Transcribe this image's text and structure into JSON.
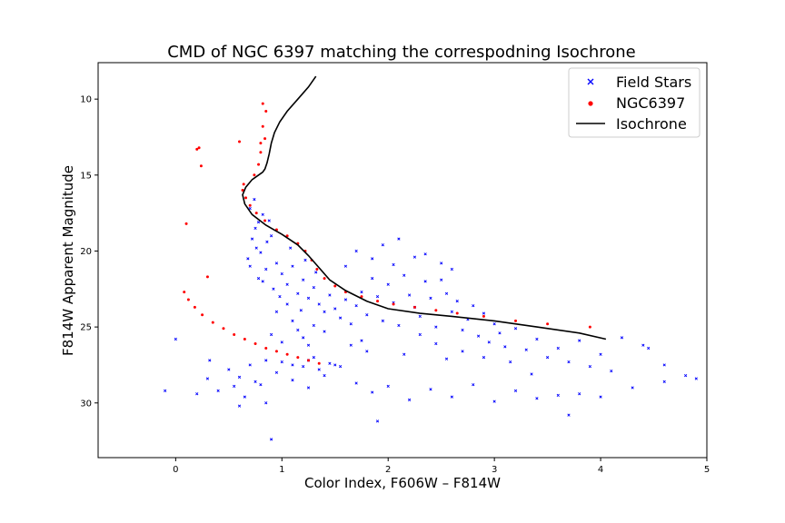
{
  "chart_data": {
    "type": "scatter",
    "title": "CMD of NGC 6397 matching the correspodning Isochrone",
    "xlabel": "Color Index, F606W – F814W",
    "ylabel": "F814W Apparent Magnitude",
    "xlim": [
      -0.73,
      5.0
    ],
    "ylim": [
      33.6,
      7.6
    ],
    "y_inverted": true,
    "xticks": [
      0,
      1,
      2,
      3,
      4,
      5
    ],
    "yticks": [
      10,
      15,
      20,
      25,
      30
    ],
    "grid": false,
    "legend_position": "top-right",
    "series": [
      {
        "name": "Field Stars",
        "marker": "x",
        "color": "#0000ff",
        "points": [
          [
            0.7,
            17.2
          ],
          [
            0.75,
            18.5
          ],
          [
            0.72,
            19.2
          ],
          [
            0.8,
            20.1
          ],
          [
            0.68,
            20.5
          ],
          [
            0.85,
            21.2
          ],
          [
            0.78,
            21.8
          ],
          [
            0.9,
            19.0
          ],
          [
            0.95,
            20.8
          ],
          [
            1.0,
            21.5
          ],
          [
            1.05,
            22.2
          ],
          [
            1.1,
            21.0
          ],
          [
            0.88,
            18.0
          ],
          [
            0.82,
            17.6
          ],
          [
            0.76,
            19.8
          ],
          [
            0.92,
            22.5
          ],
          [
            1.15,
            22.8
          ],
          [
            1.2,
            21.9
          ],
          [
            1.25,
            23.1
          ],
          [
            1.3,
            22.4
          ],
          [
            1.35,
            23.5
          ],
          [
            1.4,
            24.0
          ],
          [
            1.45,
            22.9
          ],
          [
            1.5,
            23.8
          ],
          [
            1.55,
            24.4
          ],
          [
            1.6,
            23.2
          ],
          [
            1.65,
            24.8
          ],
          [
            1.7,
            23.6
          ],
          [
            1.75,
            22.7
          ],
          [
            1.8,
            24.2
          ],
          [
            1.85,
            21.8
          ],
          [
            1.9,
            23.0
          ],
          [
            1.95,
            24.6
          ],
          [
            2.0,
            22.2
          ],
          [
            2.05,
            23.4
          ],
          [
            2.1,
            24.9
          ],
          [
            2.15,
            21.6
          ],
          [
            2.2,
            22.9
          ],
          [
            2.25,
            23.7
          ],
          [
            2.3,
            24.3
          ],
          [
            2.35,
            22.0
          ],
          [
            2.4,
            23.1
          ],
          [
            2.45,
            25.0
          ],
          [
            2.5,
            21.9
          ],
          [
            2.55,
            22.8
          ],
          [
            2.6,
            24.0
          ],
          [
            2.65,
            23.3
          ],
          [
            2.7,
            25.2
          ],
          [
            2.75,
            24.5
          ],
          [
            2.8,
            23.6
          ],
          [
            2.85,
            25.6
          ],
          [
            2.9,
            24.1
          ],
          [
            2.95,
            26.0
          ],
          [
            3.0,
            24.8
          ],
          [
            3.05,
            25.4
          ],
          [
            3.1,
            26.3
          ],
          [
            3.2,
            25.1
          ],
          [
            3.3,
            26.5
          ],
          [
            3.4,
            25.8
          ],
          [
            3.5,
            27.0
          ],
          [
            3.6,
            26.4
          ],
          [
            3.7,
            27.3
          ],
          [
            3.8,
            25.9
          ],
          [
            3.9,
            27.6
          ],
          [
            4.0,
            26.8
          ],
          [
            4.1,
            27.9
          ],
          [
            4.2,
            25.7
          ],
          [
            4.4,
            26.2
          ],
          [
            4.6,
            27.5
          ],
          [
            4.8,
            28.2
          ],
          [
            1.85,
            20.5
          ],
          [
            1.95,
            19.6
          ],
          [
            2.05,
            20.9
          ],
          [
            2.1,
            19.2
          ],
          [
            2.25,
            20.4
          ],
          [
            2.35,
            20.2
          ],
          [
            1.7,
            20.0
          ],
          [
            1.6,
            21.0
          ],
          [
            2.5,
            20.8
          ],
          [
            2.6,
            21.2
          ],
          [
            0.95,
            24.0
          ],
          [
            1.05,
            23.5
          ],
          [
            1.15,
            25.2
          ],
          [
            1.0,
            26.0
          ],
          [
            1.1,
            24.6
          ],
          [
            1.2,
            25.7
          ],
          [
            1.3,
            24.9
          ],
          [
            0.9,
            25.5
          ],
          [
            1.25,
            26.2
          ],
          [
            1.4,
            25.3
          ],
          [
            0.5,
            27.8
          ],
          [
            0.6,
            28.3
          ],
          [
            0.7,
            27.5
          ],
          [
            0.8,
            28.8
          ],
          [
            0.85,
            27.2
          ],
          [
            0.95,
            28.0
          ],
          [
            1.1,
            28.5
          ],
          [
            1.25,
            29.0
          ],
          [
            1.4,
            28.2
          ],
          [
            1.55,
            27.6
          ],
          [
            0.3,
            28.4
          ],
          [
            0.4,
            29.2
          ],
          [
            0.55,
            28.9
          ],
          [
            0.65,
            29.6
          ],
          [
            0.75,
            28.6
          ],
          [
            0.2,
            29.4
          ],
          [
            1.7,
            28.7
          ],
          [
            1.85,
            29.3
          ],
          [
            2.0,
            28.9
          ],
          [
            2.2,
            29.8
          ],
          [
            2.4,
            29.1
          ],
          [
            2.6,
            29.6
          ],
          [
            2.8,
            28.8
          ],
          [
            3.0,
            29.9
          ],
          [
            3.2,
            29.2
          ],
          [
            3.4,
            29.7
          ],
          [
            3.6,
            29.5
          ],
          [
            3.8,
            29.4
          ],
          [
            4.0,
            29.6
          ],
          [
            4.3,
            29.0
          ],
          [
            4.6,
            28.6
          ],
          [
            4.9,
            28.4
          ],
          [
            1.0,
            27.3
          ],
          [
            1.2,
            27.6
          ],
          [
            1.3,
            27.0
          ],
          [
            1.45,
            27.4
          ],
          [
            1.1,
            27.5
          ],
          [
            1.35,
            27.8
          ],
          [
            1.25,
            27.2
          ],
          [
            1.5,
            27.5
          ],
          [
            0.85,
            30.0
          ],
          [
            0.6,
            30.2
          ],
          [
            -0.1,
            29.2
          ],
          [
            0.0,
            25.8
          ],
          [
            0.9,
            32.4
          ],
          [
            0.32,
            27.2
          ],
          [
            1.9,
            31.2
          ],
          [
            3.7,
            30.8
          ],
          [
            4.45,
            26.4
          ],
          [
            2.9,
            27.0
          ],
          [
            1.75,
            25.9
          ],
          [
            1.8,
            26.6
          ],
          [
            1.65,
            26.2
          ],
          [
            2.15,
            26.8
          ],
          [
            2.3,
            25.5
          ],
          [
            2.45,
            26.1
          ],
          [
            2.7,
            26.6
          ],
          [
            2.55,
            27.1
          ],
          [
            3.15,
            27.3
          ],
          [
            3.35,
            28.1
          ],
          [
            0.74,
            16.6
          ],
          [
            0.78,
            18.1
          ],
          [
            0.86,
            19.4
          ],
          [
            0.7,
            21.0
          ],
          [
            0.82,
            22.0
          ],
          [
            0.98,
            23.0
          ],
          [
            1.18,
            23.9
          ],
          [
            1.08,
            19.8
          ],
          [
            1.22,
            20.6
          ],
          [
            1.32,
            21.4
          ]
        ]
      },
      {
        "name": "NGC6397",
        "marker": "o",
        "color": "#ff0000",
        "points": [
          [
            0.85,
            10.8
          ],
          [
            0.82,
            11.8
          ],
          [
            0.84,
            12.6
          ],
          [
            0.8,
            13.5
          ],
          [
            0.78,
            14.3
          ],
          [
            0.74,
            15.0
          ],
          [
            0.64,
            15.6
          ],
          [
            0.63,
            16.0
          ],
          [
            0.66,
            16.5
          ],
          [
            0.7,
            17.0
          ],
          [
            0.76,
            17.5
          ],
          [
            0.84,
            18.0
          ],
          [
            0.95,
            18.6
          ],
          [
            1.05,
            19.0
          ],
          [
            1.15,
            19.5
          ],
          [
            1.22,
            20.0
          ],
          [
            1.28,
            20.6
          ],
          [
            1.33,
            21.2
          ],
          [
            1.4,
            21.8
          ],
          [
            1.5,
            22.3
          ],
          [
            1.6,
            22.7
          ],
          [
            1.75,
            23.0
          ],
          [
            1.9,
            23.3
          ],
          [
            2.05,
            23.5
          ],
          [
            2.25,
            23.7
          ],
          [
            2.45,
            23.9
          ],
          [
            2.65,
            24.1
          ],
          [
            2.9,
            24.3
          ],
          [
            3.2,
            24.6
          ],
          [
            3.5,
            24.8
          ],
          [
            3.9,
            25.0
          ],
          [
            0.08,
            22.7
          ],
          [
            0.12,
            23.2
          ],
          [
            0.18,
            23.7
          ],
          [
            0.25,
            24.2
          ],
          [
            0.35,
            24.7
          ],
          [
            0.45,
            25.1
          ],
          [
            0.55,
            25.5
          ],
          [
            0.65,
            25.8
          ],
          [
            0.75,
            26.1
          ],
          [
            0.85,
            26.4
          ],
          [
            0.95,
            26.6
          ],
          [
            1.05,
            26.8
          ],
          [
            1.15,
            27.0
          ],
          [
            1.25,
            27.2
          ],
          [
            1.35,
            27.4
          ],
          [
            0.2,
            13.3
          ],
          [
            0.22,
            13.2
          ],
          [
            0.24,
            14.4
          ],
          [
            0.6,
            12.8
          ],
          [
            0.8,
            12.9
          ],
          [
            0.1,
            18.2
          ],
          [
            0.3,
            21.7
          ],
          [
            0.82,
            10.3
          ]
        ]
      }
    ],
    "lines": [
      {
        "name": "Isochrone",
        "color": "#000000",
        "x": [
          1.32,
          1.25,
          1.15,
          1.05,
          0.98,
          0.93,
          0.9,
          0.88,
          0.86,
          0.84,
          0.82,
          0.78,
          0.72,
          0.66,
          0.63,
          0.65,
          0.72,
          0.85,
          1.0,
          1.15,
          1.25,
          1.35,
          1.45,
          1.6,
          1.8,
          2.0,
          2.3,
          2.6,
          3.0,
          3.4,
          3.8,
          4.05
        ],
        "y": [
          8.5,
          9.2,
          10.0,
          10.8,
          11.5,
          12.2,
          12.9,
          13.6,
          14.2,
          14.6,
          14.8,
          15.0,
          15.3,
          15.8,
          16.3,
          16.9,
          17.6,
          18.3,
          18.9,
          19.6,
          20.3,
          21.1,
          21.9,
          22.6,
          23.3,
          23.8,
          24.1,
          24.3,
          24.6,
          25.0,
          25.4,
          25.8
        ]
      }
    ]
  }
}
